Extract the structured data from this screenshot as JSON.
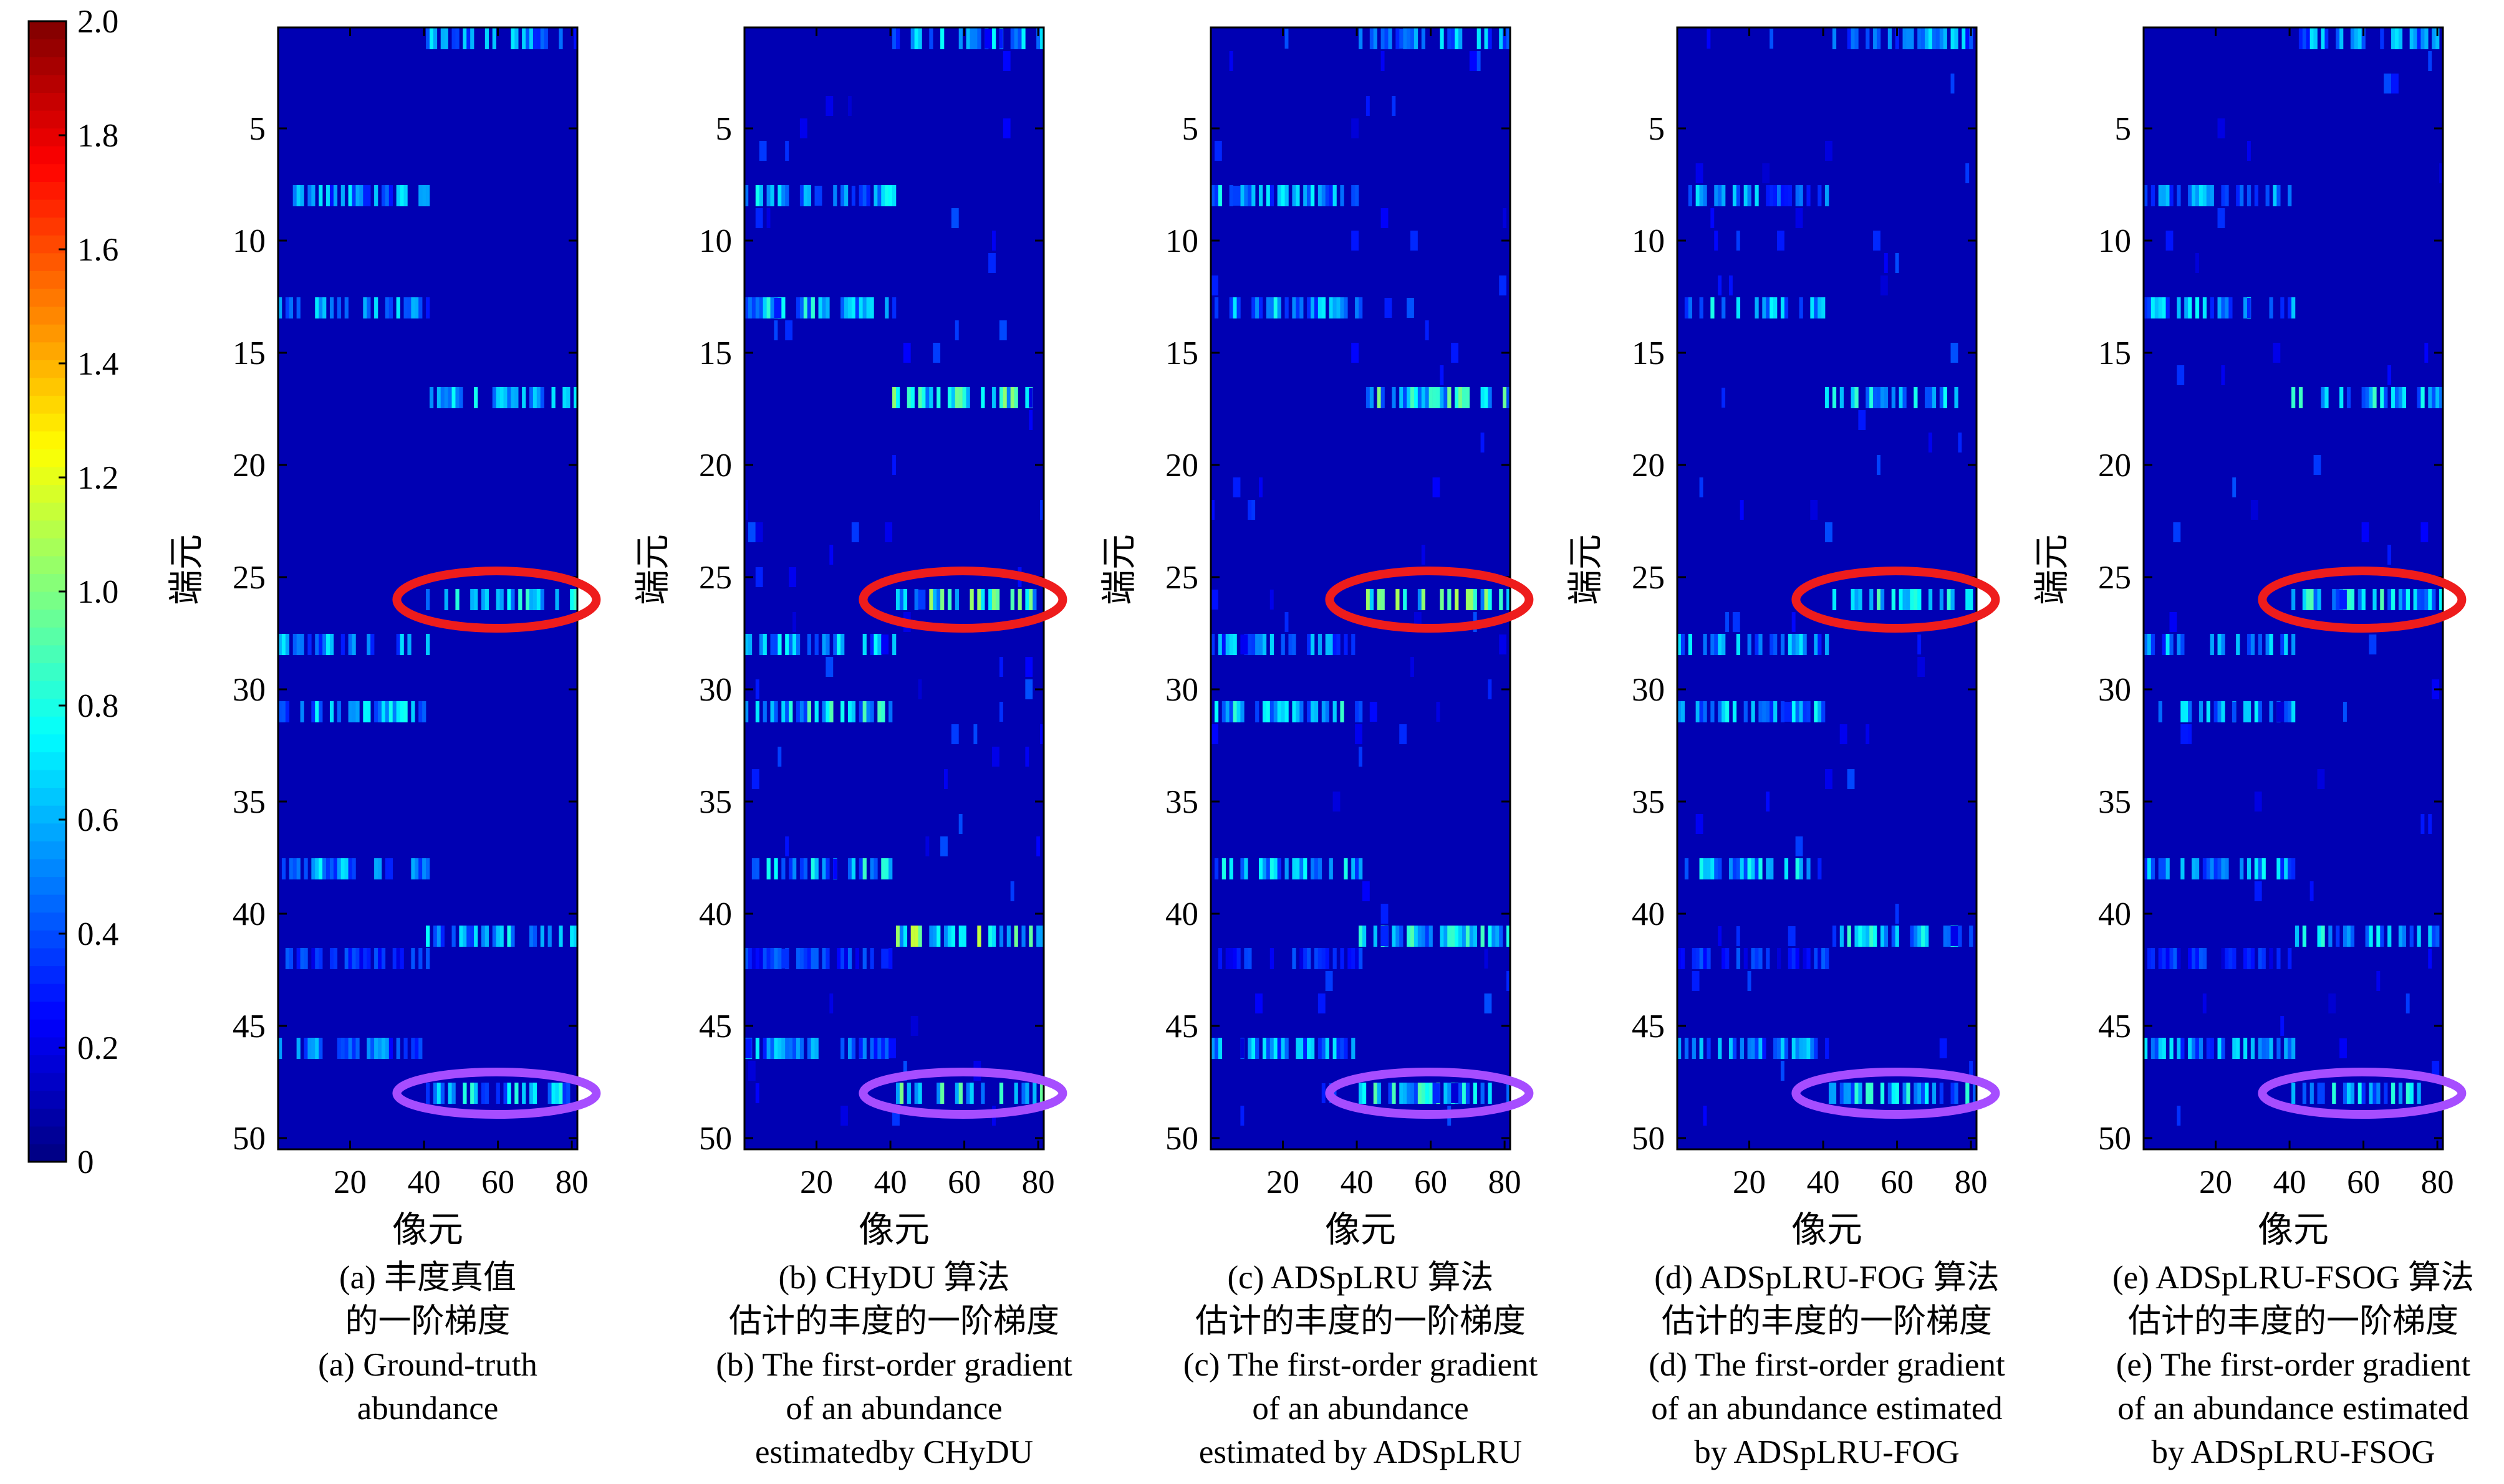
{
  "chart_data": [
    {
      "type": "heatmap",
      "caption_lines": [
        "(a) 丰度真值",
        "的一阶梯度",
        "(a) Ground-truth",
        "abundance"
      ],
      "xlabel": "像元",
      "ylabel": "端元",
      "xticks": [
        20,
        40,
        60,
        80
      ],
      "yticks": [
        5,
        10,
        15,
        20,
        25,
        30,
        35,
        40,
        45,
        50
      ],
      "xlim": [
        0.5,
        81.5
      ],
      "ylim": [
        0.5,
        50.5
      ],
      "clim": [
        0,
        2.0
      ],
      "background_value": 0.1,
      "active_rows": [
        {
          "row": 1,
          "x_range": [
            41,
            81
          ],
          "mean_value": 0.5
        },
        {
          "row": 8,
          "x_range": [
            1,
            41
          ],
          "mean_value": 0.5
        },
        {
          "row": 13,
          "x_range": [
            1,
            41
          ],
          "mean_value": 0.5
        },
        {
          "row": 17,
          "x_range": [
            41,
            81
          ],
          "mean_value": 0.55
        },
        {
          "row": 26,
          "x_range": [
            41,
            81
          ],
          "mean_value": 0.6
        },
        {
          "row": 28,
          "x_range": [
            1,
            41
          ],
          "mean_value": 0.5
        },
        {
          "row": 31,
          "x_range": [
            1,
            41
          ],
          "mean_value": 0.55
        },
        {
          "row": 38,
          "x_range": [
            1,
            41
          ],
          "mean_value": 0.55
        },
        {
          "row": 41,
          "x_range": [
            41,
            81
          ],
          "mean_value": 0.55
        },
        {
          "row": 42,
          "x_range": [
            1,
            41
          ],
          "mean_value": 0.3
        },
        {
          "row": 46,
          "x_range": [
            1,
            41
          ],
          "mean_value": 0.45
        },
        {
          "row": 48,
          "x_range": [
            41,
            81
          ],
          "mean_value": 0.6
        }
      ],
      "noise_level": 0.0,
      "highlights": [
        {
          "row": 26,
          "color": "#ee1c1c"
        },
        {
          "row": 48,
          "color": "#a64dff"
        }
      ]
    },
    {
      "type": "heatmap",
      "caption_lines": [
        "(b) CHyDU 算法",
        "估计的丰度的一阶梯度",
        "(b) The first-order gradient",
        "of an abundance",
        "estimatedby CHyDU"
      ],
      "xlabel": "像元",
      "ylabel": "端元",
      "xticks": [
        20,
        40,
        60,
        80
      ],
      "yticks": [
        5,
        10,
        15,
        20,
        25,
        30,
        35,
        40,
        45,
        50
      ],
      "xlim": [
        0.5,
        81.5
      ],
      "ylim": [
        0.5,
        50.5
      ],
      "clim": [
        0,
        2.0
      ],
      "background_value": 0.1,
      "active_rows": [
        {
          "row": 1,
          "x_range": [
            41,
            81
          ],
          "mean_value": 0.55
        },
        {
          "row": 8,
          "x_range": [
            1,
            41
          ],
          "mean_value": 0.55
        },
        {
          "row": 13,
          "x_range": [
            1,
            41
          ],
          "mean_value": 0.6
        },
        {
          "row": 17,
          "x_range": [
            41,
            81
          ],
          "mean_value": 0.75
        },
        {
          "row": 26,
          "x_range": [
            41,
            81
          ],
          "mean_value": 0.75
        },
        {
          "row": 28,
          "x_range": [
            1,
            41
          ],
          "mean_value": 0.55
        },
        {
          "row": 31,
          "x_range": [
            1,
            41
          ],
          "mean_value": 0.65
        },
        {
          "row": 38,
          "x_range": [
            1,
            41
          ],
          "mean_value": 0.6
        },
        {
          "row": 41,
          "x_range": [
            41,
            81
          ],
          "mean_value": 0.8
        },
        {
          "row": 42,
          "x_range": [
            1,
            41
          ],
          "mean_value": 0.35
        },
        {
          "row": 46,
          "x_range": [
            1,
            41
          ],
          "mean_value": 0.5
        },
        {
          "row": 48,
          "x_range": [
            41,
            81
          ],
          "mean_value": 0.7
        }
      ],
      "noise_level": 0.3,
      "highlights": [
        {
          "row": 26,
          "color": "#ee1c1c"
        },
        {
          "row": 48,
          "color": "#a64dff"
        }
      ]
    },
    {
      "type": "heatmap",
      "caption_lines": [
        "(c) ADSpLRU 算法",
        "估计的丰度的一阶梯度",
        "(c) The first-order gradient",
        "of an abundance",
        "estimated by ADSpLRU"
      ],
      "xlabel": "像元",
      "ylabel": "端元",
      "xticks": [
        20,
        40,
        60,
        80
      ],
      "yticks": [
        5,
        10,
        15,
        20,
        25,
        30,
        35,
        40,
        45,
        50
      ],
      "xlim": [
        0.5,
        81.5
      ],
      "ylim": [
        0.5,
        50.5
      ],
      "clim": [
        0,
        2.0
      ],
      "background_value": 0.1,
      "active_rows": [
        {
          "row": 1,
          "x_range": [
            41,
            81
          ],
          "mean_value": 0.5
        },
        {
          "row": 8,
          "x_range": [
            1,
            41
          ],
          "mean_value": 0.55
        },
        {
          "row": 13,
          "x_range": [
            1,
            41
          ],
          "mean_value": 0.55
        },
        {
          "row": 17,
          "x_range": [
            41,
            81
          ],
          "mean_value": 0.7
        },
        {
          "row": 26,
          "x_range": [
            41,
            81
          ],
          "mean_value": 0.75
        },
        {
          "row": 28,
          "x_range": [
            1,
            41
          ],
          "mean_value": 0.5
        },
        {
          "row": 31,
          "x_range": [
            1,
            41
          ],
          "mean_value": 0.6
        },
        {
          "row": 38,
          "x_range": [
            1,
            41
          ],
          "mean_value": 0.55
        },
        {
          "row": 41,
          "x_range": [
            41,
            81
          ],
          "mean_value": 0.65
        },
        {
          "row": 42,
          "x_range": [
            1,
            41
          ],
          "mean_value": 0.3
        },
        {
          "row": 46,
          "x_range": [
            1,
            41
          ],
          "mean_value": 0.5
        },
        {
          "row": 48,
          "x_range": [
            41,
            81
          ],
          "mean_value": 0.65
        }
      ],
      "noise_level": 0.25,
      "highlights": [
        {
          "row": 26,
          "color": "#ee1c1c"
        },
        {
          "row": 48,
          "color": "#a64dff"
        }
      ]
    },
    {
      "type": "heatmap",
      "caption_lines": [
        "(d) ADSpLRU-FOG 算法",
        "估计的丰度的一阶梯度",
        "(d) The first-order gradient",
        "of an abundance estimated",
        "by ADSpLRU-FOG"
      ],
      "xlabel": "像元",
      "ylabel": "端元",
      "xticks": [
        20,
        40,
        60,
        80
      ],
      "yticks": [
        5,
        10,
        15,
        20,
        25,
        30,
        35,
        40,
        45,
        50
      ],
      "xlim": [
        0.5,
        81.5
      ],
      "ylim": [
        0.5,
        50.5
      ],
      "clim": [
        0,
        2.0
      ],
      "background_value": 0.1,
      "active_rows": [
        {
          "row": 1,
          "x_range": [
            41,
            81
          ],
          "mean_value": 0.5
        },
        {
          "row": 8,
          "x_range": [
            1,
            41
          ],
          "mean_value": 0.5
        },
        {
          "row": 13,
          "x_range": [
            1,
            41
          ],
          "mean_value": 0.55
        },
        {
          "row": 17,
          "x_range": [
            41,
            81
          ],
          "mean_value": 0.6
        },
        {
          "row": 26,
          "x_range": [
            41,
            81
          ],
          "mean_value": 0.65
        },
        {
          "row": 28,
          "x_range": [
            1,
            41
          ],
          "mean_value": 0.5
        },
        {
          "row": 31,
          "x_range": [
            1,
            41
          ],
          "mean_value": 0.55
        },
        {
          "row": 38,
          "x_range": [
            1,
            41
          ],
          "mean_value": 0.55
        },
        {
          "row": 41,
          "x_range": [
            41,
            81
          ],
          "mean_value": 0.6
        },
        {
          "row": 42,
          "x_range": [
            1,
            41
          ],
          "mean_value": 0.3
        },
        {
          "row": 46,
          "x_range": [
            1,
            41
          ],
          "mean_value": 0.5
        },
        {
          "row": 48,
          "x_range": [
            41,
            81
          ],
          "mean_value": 0.6
        }
      ],
      "noise_level": 0.2,
      "highlights": [
        {
          "row": 26,
          "color": "#ee1c1c"
        },
        {
          "row": 48,
          "color": "#a64dff"
        }
      ]
    },
    {
      "type": "heatmap",
      "caption_lines": [
        "(e) ADSpLRU-FSOG 算法",
        "估计的丰度的一阶梯度",
        "(e) The first-order gradient",
        "of an abundance estimated",
        "by ADSpLRU-FSOG"
      ],
      "xlabel": "像元",
      "ylabel": "端元",
      "xticks": [
        20,
        40,
        60,
        80
      ],
      "yticks": [
        5,
        10,
        15,
        20,
        25,
        30,
        35,
        40,
        45,
        50
      ],
      "xlim": [
        0.5,
        81.5
      ],
      "ylim": [
        0.5,
        50.5
      ],
      "clim": [
        0,
        2.0
      ],
      "background_value": 0.1,
      "active_rows": [
        {
          "row": 1,
          "x_range": [
            41,
            81
          ],
          "mean_value": 0.5
        },
        {
          "row": 8,
          "x_range": [
            1,
            41
          ],
          "mean_value": 0.5
        },
        {
          "row": 13,
          "x_range": [
            1,
            41
          ],
          "mean_value": 0.55
        },
        {
          "row": 17,
          "x_range": [
            41,
            81
          ],
          "mean_value": 0.6
        },
        {
          "row": 26,
          "x_range": [
            41,
            81
          ],
          "mean_value": 0.65
        },
        {
          "row": 28,
          "x_range": [
            1,
            41
          ],
          "mean_value": 0.5
        },
        {
          "row": 31,
          "x_range": [
            1,
            41
          ],
          "mean_value": 0.55
        },
        {
          "row": 38,
          "x_range": [
            1,
            41
          ],
          "mean_value": 0.55
        },
        {
          "row": 41,
          "x_range": [
            41,
            81
          ],
          "mean_value": 0.6
        },
        {
          "row": 42,
          "x_range": [
            1,
            41
          ],
          "mean_value": 0.3
        },
        {
          "row": 46,
          "x_range": [
            1,
            41
          ],
          "mean_value": 0.5
        },
        {
          "row": 48,
          "x_range": [
            41,
            81
          ],
          "mean_value": 0.6
        }
      ],
      "noise_level": 0.18,
      "highlights": [
        {
          "row": 26,
          "color": "#ee1c1c"
        },
        {
          "row": 48,
          "color": "#a64dff"
        }
      ]
    }
  ],
  "colorbar": {
    "colormap": "jet",
    "range": [
      0,
      2.0
    ],
    "tick_labels": [
      "0",
      "0.2",
      "0.4",
      "0.6",
      "0.8",
      "1.0",
      "1.2",
      "1.4",
      "1.6",
      "1.8",
      "2.0"
    ]
  }
}
